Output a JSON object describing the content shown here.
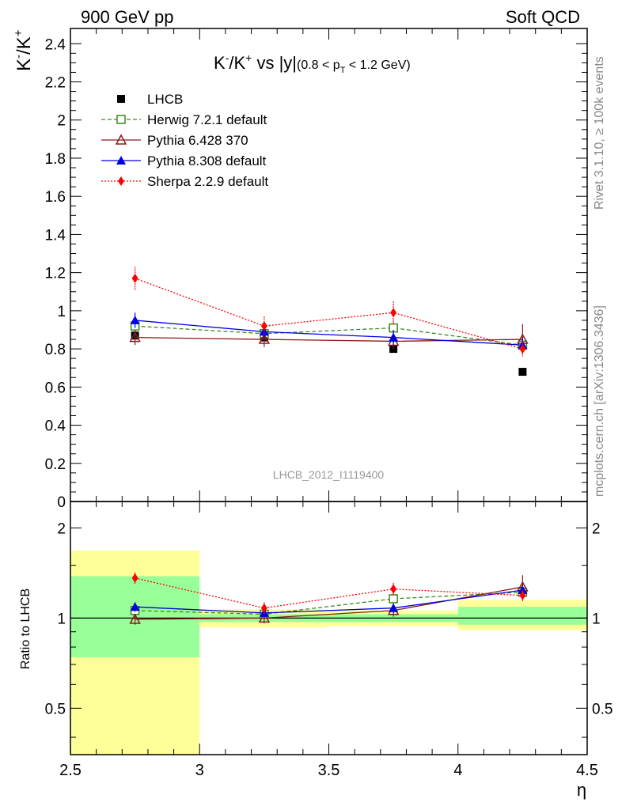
{
  "header": {
    "left_label": "900 GeV pp",
    "right_label": "Soft QCD"
  },
  "side_labels": {
    "rivet": "Rivet 3.1.10, ≥ 100k events",
    "source": "mcplots.cern.ch [arXiv:1306.3436]"
  },
  "chart_data": [
    {
      "id": "main",
      "type": "line",
      "title_main": "K",
      "title_sup1": "-",
      "title_slash": "/K",
      "title_sup2": "+",
      "title_vs": " vs |y|",
      "title_cut_pre": "(0.8 < p",
      "title_cut_sub": "T",
      "title_cut_post": " < 1.2 GeV)",
      "ylabel_main": "K",
      "ylabel_sup1": "-",
      "ylabel_slash": "/K",
      "ylabel_sup2": "+",
      "analysis_label": "LHCB_2012_I1119400",
      "xlim": [
        2.5,
        4.5
      ],
      "ylim": [
        0,
        2.48
      ],
      "yticks": [
        0,
        0.2,
        0.4,
        0.6,
        0.8,
        1,
        1.2,
        1.4,
        1.6,
        1.8,
        2,
        2.2,
        2.4
      ],
      "ytick_labels": [
        "0",
        "0.2",
        "0.4",
        "0.6",
        "0.8",
        "1",
        "1.2",
        "1.4",
        "1.6",
        "1.8",
        "2",
        "2.2",
        "2.4"
      ],
      "legend_position": "top-left",
      "grid": false,
      "x": [
        2.75,
        3.25,
        3.75,
        4.25
      ],
      "series": [
        {
          "name": "LHCB",
          "color": "#000000",
          "marker": "square",
          "dash": "none",
          "values": [
            0.87,
            0.86,
            0.8,
            0.68
          ],
          "err": [
            0.02,
            0.02,
            0.02,
            0.02
          ]
        },
        {
          "name": "Herwig 7.2.1 default",
          "color": "#3a8a1e",
          "marker": "open-square",
          "dash": "5,3",
          "values": [
            0.92,
            0.88,
            0.91,
            0.82
          ],
          "err": [
            0.03,
            0.03,
            0.03,
            0.03
          ]
        },
        {
          "name": "Pythia 6.428 370",
          "color": "#8b1a1a",
          "marker": "open-triangle",
          "dash": "none",
          "values": [
            0.86,
            0.85,
            0.84,
            0.85
          ],
          "err": [
            0.04,
            0.04,
            0.04,
            0.08
          ]
        },
        {
          "name": "Pythia 8.308 default",
          "color": "#0000e0",
          "marker": "triangle",
          "dash": "none",
          "values": [
            0.95,
            0.89,
            0.86,
            0.82
          ],
          "err": [
            0.04,
            0.04,
            0.04,
            0.04
          ]
        },
        {
          "name": "Sherpa 2.2.9 default",
          "color": "#ff0000",
          "marker": "diamond",
          "dash": "2,2",
          "values": [
            1.17,
            0.92,
            0.99,
            0.8
          ],
          "err": [
            0.06,
            0.05,
            0.06,
            0.04
          ]
        }
      ]
    },
    {
      "id": "ratio",
      "type": "line",
      "ylabel": "Ratio to LHCB",
      "xlabel": "η",
      "scale": "log",
      "xlim": [
        2.5,
        4.5
      ],
      "ylim": [
        0.35,
        2.45
      ],
      "xticks": [
        2.5,
        3,
        3.5,
        4,
        4.5
      ],
      "xtick_labels": [
        "2.5",
        "3",
        "3.5",
        "4",
        "4.5"
      ],
      "yticks": [
        0.5,
        1,
        2
      ],
      "ytick_labels": [
        "0.5",
        "1",
        "2"
      ],
      "reference": 1,
      "bands": [
        {
          "x0": 2.5,
          "x1": 3.0,
          "yellow": [
            0.35,
            1.68
          ],
          "green": [
            0.74,
            1.38
          ]
        },
        {
          "x0": 3.0,
          "x1": 3.5,
          "yellow": [
            0.93,
            1.07
          ],
          "green": [
            0.97,
            1.03
          ]
        },
        {
          "x0": 3.5,
          "x1": 4.0,
          "yellow": [
            0.94,
            1.06
          ],
          "green": [
            0.97,
            1.03
          ]
        },
        {
          "x0": 4.0,
          "x1": 4.5,
          "yellow": [
            0.91,
            1.15
          ],
          "green": [
            0.95,
            1.09
          ]
        }
      ],
      "x": [
        2.75,
        3.25,
        3.75,
        4.25
      ],
      "series": [
        {
          "name": "Herwig 7.2.1 default",
          "color": "#3a8a1e",
          "marker": "open-square",
          "dash": "5,3",
          "values": [
            1.06,
            1.03,
            1.16,
            1.22
          ],
          "err": [
            0.03,
            0.03,
            0.03,
            0.04
          ]
        },
        {
          "name": "Pythia 6.428 370",
          "color": "#8b1a1a",
          "marker": "open-triangle",
          "dash": "none",
          "values": [
            0.99,
            1.0,
            1.06,
            1.27
          ],
          "err": [
            0.04,
            0.04,
            0.05,
            0.12
          ]
        },
        {
          "name": "Pythia 8.308 default",
          "color": "#0000e0",
          "marker": "triangle",
          "dash": "none",
          "values": [
            1.09,
            1.04,
            1.08,
            1.24
          ],
          "err": [
            0.04,
            0.04,
            0.04,
            0.05
          ]
        },
        {
          "name": "Sherpa 2.2.9 default",
          "color": "#ff0000",
          "marker": "diamond",
          "dash": "2,2",
          "values": [
            1.36,
            1.08,
            1.25,
            1.19
          ],
          "err": [
            0.06,
            0.05,
            0.06,
            0.05
          ]
        }
      ]
    }
  ]
}
